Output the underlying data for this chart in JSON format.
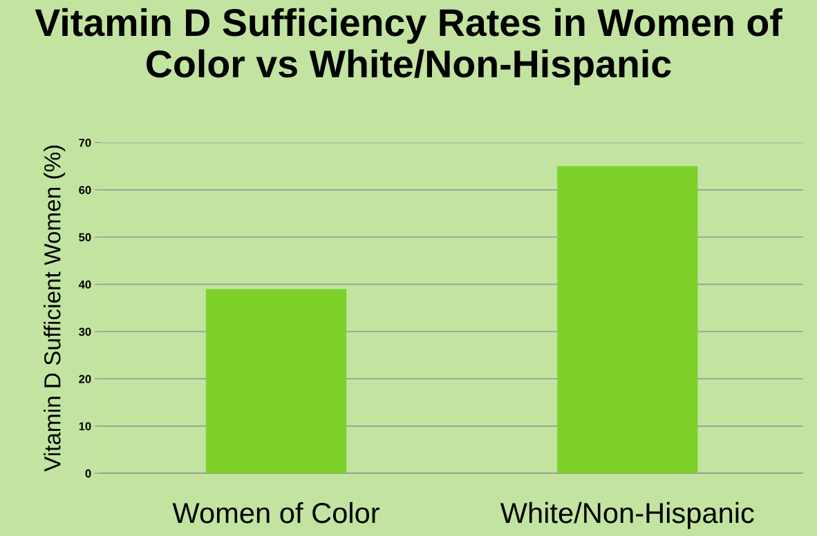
{
  "chart_data": {
    "type": "bar",
    "title": "Vitamin D Sufficiency Rates in Women of Color vs White/Non-Hispanic",
    "ylabel": "Vitamin D Sufficient Women (%)",
    "categories": [
      "Women of Color",
      "White/Non-Hispanic"
    ],
    "values": [
      39,
      65
    ],
    "color": "#7dd12a",
    "ylim": [
      0,
      70
    ],
    "yticks": [
      0,
      10,
      20,
      30,
      40,
      50,
      60,
      70
    ],
    "grid": "y"
  }
}
